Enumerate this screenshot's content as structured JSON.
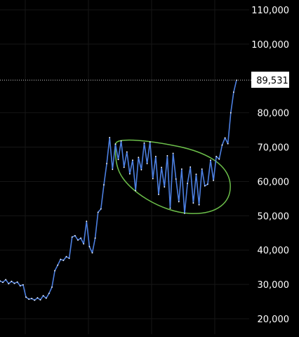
{
  "chart_data": {
    "type": "line",
    "title": "",
    "xlabel": "",
    "ylabel": "",
    "ylim": [
      18000,
      115000
    ],
    "grid": true,
    "y_ticks": [
      {
        "value": 110000,
        "label": "110,000"
      },
      {
        "value": 100000,
        "label": "100,000"
      },
      {
        "value": 80000,
        "label": "80,000"
      },
      {
        "value": 70000,
        "label": "70,000"
      },
      {
        "value": 60000,
        "label": "60,000"
      },
      {
        "value": 50000,
        "label": "50,000"
      },
      {
        "value": 40000,
        "label": "40,000"
      },
      {
        "value": 30000,
        "label": "30,000"
      },
      {
        "value": 20000,
        "label": "20,000"
      }
    ],
    "last_price": {
      "value": 89531,
      "label": "89,531"
    },
    "series": [
      {
        "values": [
          31000,
          30600,
          31400,
          30200,
          30900,
          30300,
          30700,
          29600,
          29900,
          26300,
          25700,
          25900,
          25400,
          26100,
          25500,
          26700,
          26000,
          27400,
          29200,
          34000,
          35600,
          37300,
          37000,
          38100,
          37600,
          43800,
          44200,
          42900,
          43500,
          41800,
          48400,
          41000,
          39200,
          43500,
          51000,
          52000,
          59000,
          65200,
          72800,
          63500,
          70900,
          66400,
          71800,
          64100,
          68600,
          62200,
          66200,
          57300,
          67000,
          63400,
          71200,
          65200,
          71500,
          60800,
          67300,
          56200,
          64100,
          58400,
          67500,
          52200,
          68200,
          60700,
          54100,
          63600,
          50700,
          59400,
          64200,
          53700,
          62100,
          53200,
          63600,
          58700,
          59200,
          66200,
          60300,
          67300,
          66500,
          70600,
          72700,
          71000,
          80000,
          86000,
          89531
        ]
      }
    ],
    "annotations": [
      {
        "type": "ellipse",
        "label": ""
      }
    ],
    "colors": {
      "background": "#000000",
      "line": "#4c7fe0",
      "ellipse": "#6cbf4a",
      "grid": "#161616",
      "price_line": "#cfcfcf",
      "tick_text": "#ffffff",
      "price_label_bg": "#ffffff",
      "price_label_text": "#000000"
    }
  }
}
